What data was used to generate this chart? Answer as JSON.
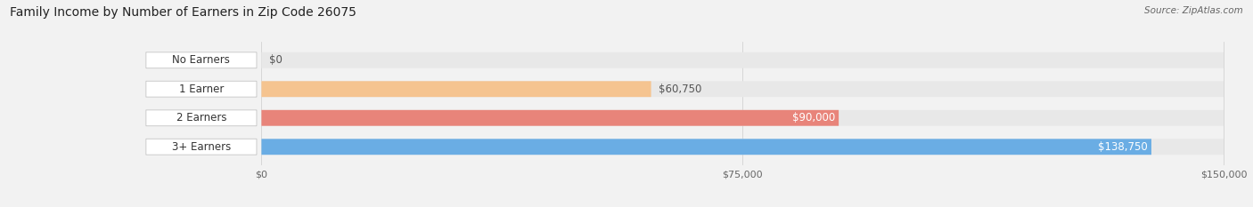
{
  "title": "Family Income by Number of Earners in Zip Code 26075",
  "source": "Source: ZipAtlas.com",
  "categories": [
    "No Earners",
    "1 Earner",
    "2 Earners",
    "3+ Earners"
  ],
  "values": [
    0,
    60750,
    90000,
    138750
  ],
  "bar_colors": [
    "#f093a0",
    "#f5c490",
    "#e8847a",
    "#6aade4"
  ],
  "value_labels": [
    "$0",
    "$60,750",
    "$90,000",
    "$138,750"
  ],
  "xmax": 150000,
  "xticks": [
    0,
    75000,
    150000
  ],
  "xticklabels": [
    "$0",
    "$75,000",
    "$150,000"
  ],
  "bg_color": "#f2f2f2",
  "bar_bg_color": "#e8e8e8",
  "title_fontsize": 10,
  "source_fontsize": 7.5,
  "label_fontsize": 8.5,
  "value_fontsize": 8.5
}
